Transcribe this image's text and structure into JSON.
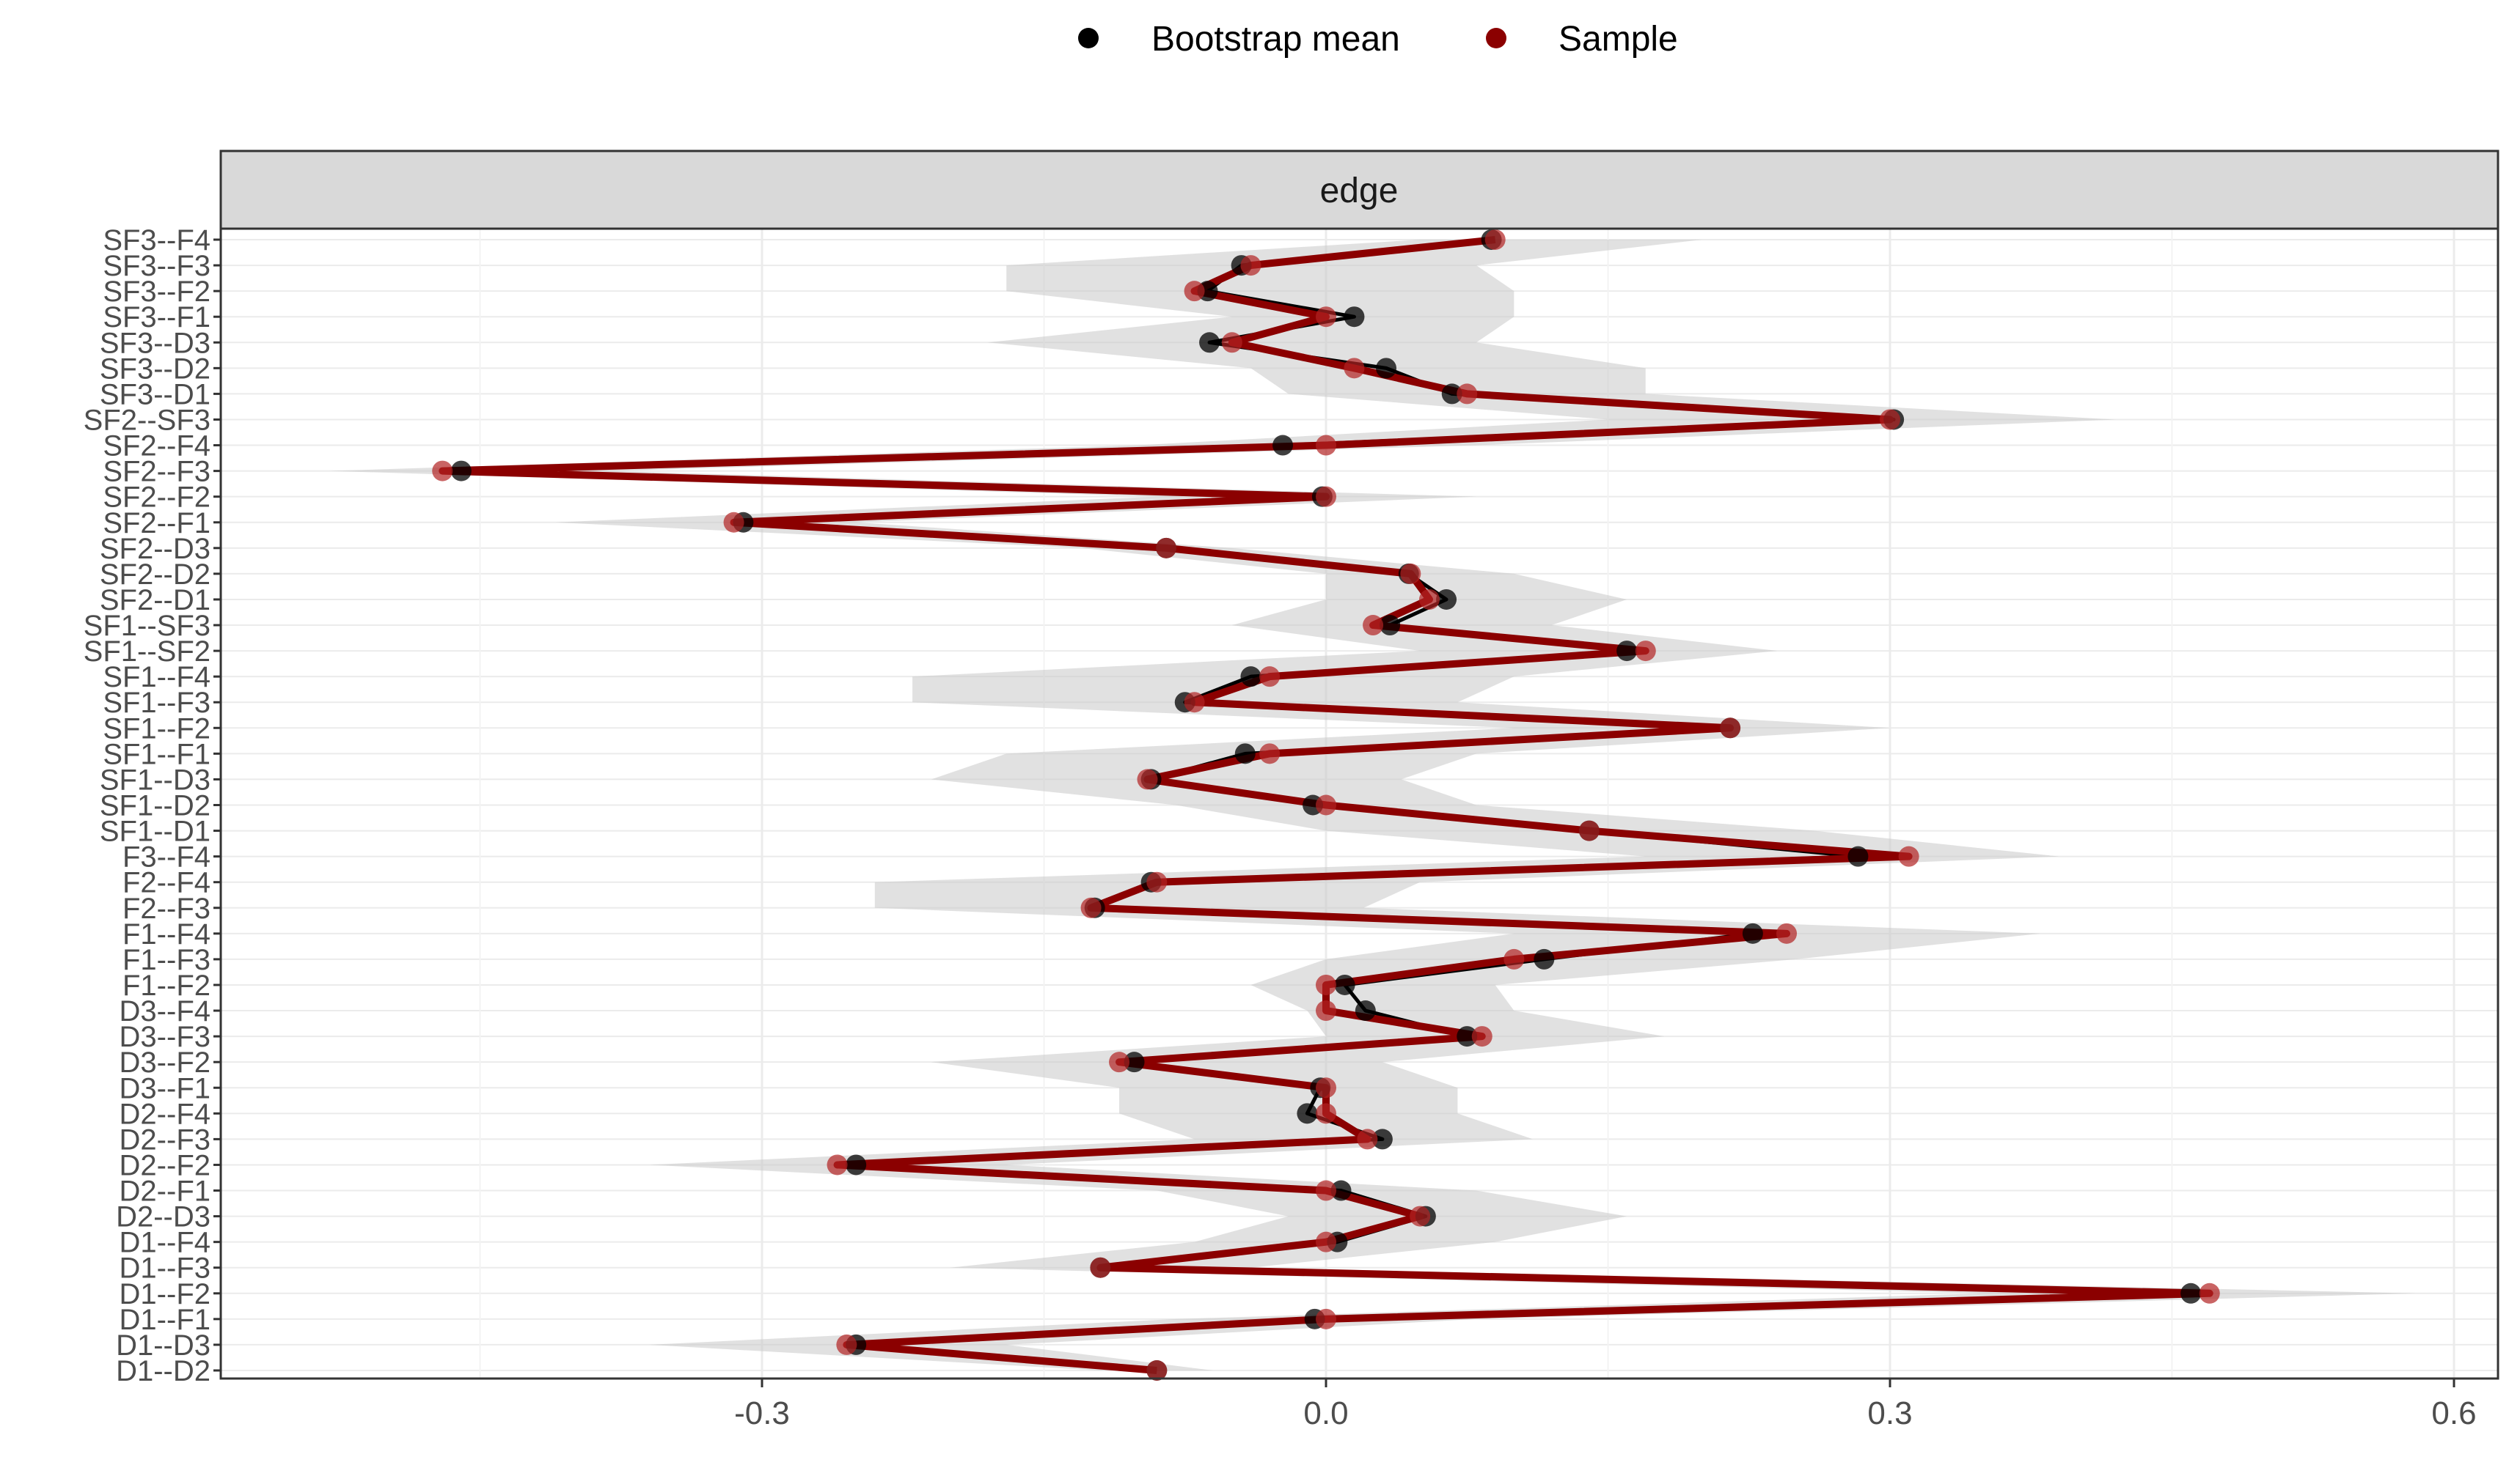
{
  "chart_data": {
    "type": "line",
    "title": "",
    "facet_label": "edge",
    "xlabel": "",
    "ylabel": "",
    "xlim": [
      -0.6,
      0.63
    ],
    "x_ticks": [
      -0.3,
      0.0,
      0.3,
      0.6
    ],
    "x_tick_labels": [
      "-0.3",
      "0.0",
      "0.3",
      "0.6"
    ],
    "legend": {
      "position": "top",
      "entries": [
        {
          "name": "Bootstrap mean",
          "color": "#000000"
        },
        {
          "name": "Sample",
          "color": "#8b0000"
        }
      ]
    },
    "colors": {
      "bootstrap": "#000000",
      "sample": "#8b0000",
      "ribbon": "#c8c8c8",
      "strip_bg": "#d9d9d9"
    },
    "categories": [
      "SF3--F4",
      "SF3--F3",
      "SF3--F2",
      "SF3--F1",
      "SF3--D3",
      "SF3--D2",
      "SF3--D1",
      "SF2--SF3",
      "SF2--F4",
      "SF2--F3",
      "SF2--F2",
      "SF2--F1",
      "SF2--D3",
      "SF2--D2",
      "SF2--D1",
      "SF1--SF3",
      "SF1--SF2",
      "SF1--F4",
      "SF1--F3",
      "SF1--F2",
      "SF1--F1",
      "SF1--D3",
      "SF1--D2",
      "SF1--D1",
      "F3--F4",
      "F2--F4",
      "F2--F3",
      "F1--F4",
      "F1--F3",
      "F1--F2",
      "D3--F4",
      "D3--F3",
      "D3--F2",
      "D3--F1",
      "D2--F4",
      "D2--F3",
      "D2--F2",
      "D2--F1",
      "D2--D3",
      "D1--F4",
      "D1--F3",
      "D1--F2",
      "D1--F1",
      "D1--D3",
      "D1--D2"
    ],
    "series": [
      {
        "name": "Sample",
        "values": [
          0.09,
          -0.04,
          -0.07,
          0.0,
          -0.05,
          0.015,
          0.075,
          0.3,
          0.0,
          -0.47,
          0.0,
          -0.315,
          -0.085,
          0.045,
          0.055,
          0.025,
          0.17,
          -0.03,
          -0.07,
          0.215,
          -0.03,
          -0.095,
          0.0,
          0.14,
          0.31,
          -0.09,
          -0.125,
          0.245,
          0.1,
          0.0,
          0.0,
          0.083,
          -0.11,
          0.0,
          0.0,
          0.022,
          -0.26,
          0.0,
          0.05,
          0.0,
          -0.12,
          0.47,
          0.0,
          -0.255,
          -0.09
        ]
      },
      {
        "name": "Bootstrap mean",
        "values": [
          0.088,
          -0.045,
          -0.063,
          0.015,
          -0.062,
          0.032,
          0.067,
          0.302,
          -0.023,
          -0.46,
          -0.002,
          -0.31,
          -0.085,
          0.044,
          0.064,
          0.034,
          0.16,
          -0.04,
          -0.075,
          0.215,
          -0.043,
          -0.093,
          -0.007,
          0.14,
          0.283,
          -0.093,
          -0.123,
          0.227,
          0.116,
          0.01,
          0.021,
          0.075,
          -0.102,
          -0.003,
          -0.01,
          0.03,
          -0.25,
          0.008,
          0.053,
          0.006,
          -0.12,
          0.46,
          -0.006,
          -0.25,
          -0.09
        ]
      }
    ],
    "ribbon": {
      "lower": [
        0.05,
        -0.17,
        -0.17,
        -0.05,
        -0.18,
        -0.04,
        -0.02,
        0.15,
        -0.1,
        -0.53,
        -0.09,
        -0.41,
        -0.13,
        0.0,
        0.0,
        -0.05,
        0.05,
        -0.22,
        -0.22,
        0.1,
        -0.17,
        -0.21,
        -0.08,
        0.0,
        0.17,
        -0.24,
        -0.24,
        0.1,
        0.0,
        -0.04,
        -0.01,
        0.0,
        -0.21,
        -0.11,
        -0.11,
        -0.07,
        -0.36,
        -0.09,
        -0.02,
        -0.07,
        -0.2,
        0.35,
        -0.08,
        -0.36,
        -0.12
      ],
      "upper": [
        0.2,
        0.08,
        0.1,
        0.1,
        0.08,
        0.17,
        0.17,
        0.42,
        0.08,
        -0.38,
        0.08,
        -0.25,
        -0.05,
        0.1,
        0.16,
        0.12,
        0.24,
        0.1,
        0.07,
        0.3,
        0.08,
        0.04,
        0.08,
        0.26,
        0.39,
        0.05,
        0.02,
        0.38,
        0.25,
        0.09,
        0.1,
        0.18,
        0.03,
        0.07,
        0.07,
        0.11,
        -0.17,
        0.08,
        0.16,
        0.09,
        -0.04,
        0.58,
        0.08,
        -0.17,
        -0.06
      ]
    }
  }
}
